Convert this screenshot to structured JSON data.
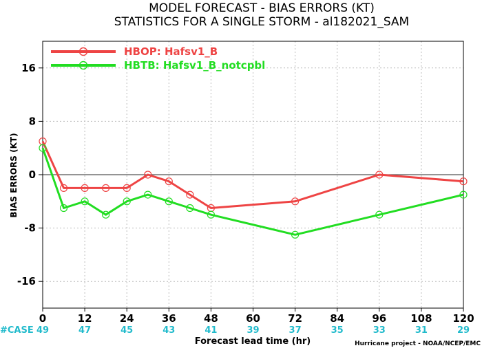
{
  "chart_data": {
    "type": "line",
    "title": "MODEL FORECAST - BIAS ERRORS (KT)",
    "subtitle": "STATISTICS FOR A SINGLE STORM - al182021_SAM",
    "xlabel": "Forecast lead time (hr)",
    "ylabel": "BIAS ERRORS (KT)",
    "xlim": [
      0,
      120
    ],
    "ylim": [
      -20,
      20
    ],
    "x_ticks": [
      0,
      12,
      24,
      36,
      48,
      60,
      72,
      84,
      96,
      108,
      120
    ],
    "y_ticks": [
      -16,
      -8,
      0,
      8,
      16
    ],
    "grid": true,
    "legend_position": "top-left",
    "series": [
      {
        "name": "HBOP: Hafsv1_B",
        "color": "#ee4444",
        "x": [
          0,
          6,
          12,
          18,
          24,
          30,
          36,
          42,
          48,
          72,
          96,
          120
        ],
        "values": [
          5,
          -2,
          -2,
          -2,
          -2,
          0,
          -1,
          -3,
          -5,
          -4,
          0,
          -1
        ]
      },
      {
        "name": "HBTB: Hafsv1_B_notcpbl",
        "color": "#22dd22",
        "x": [
          0,
          6,
          12,
          18,
          24,
          30,
          36,
          42,
          48,
          72,
          96,
          120
        ],
        "values": [
          4,
          -5,
          -4,
          -6,
          -4,
          -3,
          -4,
          -5,
          -6,
          -9,
          -6,
          -3
        ]
      }
    ],
    "case_label": "#CASE",
    "case_color": "#22bbcc",
    "case_counts": {
      "x": [
        0,
        12,
        24,
        36,
        48,
        60,
        72,
        84,
        96,
        108,
        120
      ],
      "values": [
        "49",
        "47",
        "45",
        "43",
        "41",
        "39",
        "37",
        "35",
        "33",
        "31",
        "29"
      ]
    },
    "credit": "Hurricane project - NOAA/NCEP/EMC"
  }
}
